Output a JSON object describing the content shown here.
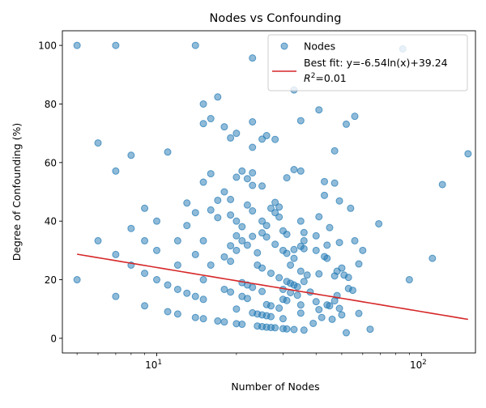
{
  "chart_data": {
    "type": "scatter",
    "title": "Nodes vs Confounding",
    "xlabel": "Number of Nodes",
    "ylabel": "Degree of Confounding (%)",
    "xscale": "log",
    "xlim": [
      4.4,
      160
    ],
    "ylim": [
      -5,
      105
    ],
    "xticks": [
      {
        "value": 10,
        "base": "10",
        "exp": "1"
      },
      {
        "value": 100,
        "base": "10",
        "exp": "2"
      }
    ],
    "yticks": [
      0,
      20,
      40,
      60,
      80,
      100
    ],
    "ytick_labels": [
      "0",
      "20",
      "40",
      "60",
      "80",
      "100"
    ],
    "legend": {
      "position": "top-right",
      "scatter_label": "Nodes",
      "fit_label": "Best fit: y=-6.54ln(x)+39.24",
      "r2_label": "R",
      "r2_sup": "2",
      "r2_value": "=0.01"
    },
    "fit": {
      "a": -6.54,
      "b": 39.24,
      "x_range": [
        5,
        150
      ]
    },
    "colors": {
      "points": "#1f77b4",
      "fit": "#d62728"
    },
    "points": [
      [
        5,
        100
      ],
      [
        5,
        20
      ],
      [
        6,
        66.7
      ],
      [
        6,
        33.3
      ],
      [
        7,
        100
      ],
      [
        7,
        57.1
      ],
      [
        7,
        28.6
      ],
      [
        7,
        14.3
      ],
      [
        8,
        62.5
      ],
      [
        8,
        37.5
      ],
      [
        8,
        25
      ],
      [
        9,
        44.4
      ],
      [
        9,
        33.3
      ],
      [
        9,
        22.2
      ],
      [
        9,
        11.1
      ],
      [
        10,
        40
      ],
      [
        10,
        30
      ],
      [
        10,
        20
      ],
      [
        11,
        63.6
      ],
      [
        11,
        18.2
      ],
      [
        11,
        9.1
      ],
      [
        12,
        33.3
      ],
      [
        12,
        25
      ],
      [
        12,
        16.7
      ],
      [
        12,
        8.3
      ],
      [
        13,
        46.2
      ],
      [
        13,
        38.5
      ],
      [
        13,
        15.4
      ],
      [
        14,
        100
      ],
      [
        14,
        42.9
      ],
      [
        14,
        28.6
      ],
      [
        14,
        14.3
      ],
      [
        14,
        7.1
      ],
      [
        15,
        80
      ],
      [
        15,
        73.3
      ],
      [
        15,
        53.3
      ],
      [
        15,
        33.3
      ],
      [
        15,
        20
      ],
      [
        15,
        13.3
      ],
      [
        15,
        6.7
      ],
      [
        16,
        75
      ],
      [
        16,
        56.2
      ],
      [
        16,
        43.8
      ],
      [
        16,
        25
      ],
      [
        17,
        82.4
      ],
      [
        17,
        47.1
      ],
      [
        17,
        41.2
      ],
      [
        17,
        5.9
      ],
      [
        18,
        72.2
      ],
      [
        18,
        50
      ],
      [
        18,
        27.8
      ],
      [
        18,
        16.7
      ],
      [
        18,
        5.6
      ],
      [
        19,
        68.4
      ],
      [
        19,
        47.4
      ],
      [
        19,
        42.1
      ],
      [
        19,
        31.6
      ],
      [
        19,
        26.3
      ],
      [
        19,
        15.8
      ],
      [
        20,
        70
      ],
      [
        20,
        55
      ],
      [
        20,
        40
      ],
      [
        20,
        35
      ],
      [
        20,
        30
      ],
      [
        20,
        10
      ],
      [
        20,
        5
      ],
      [
        21,
        57.1
      ],
      [
        21,
        38.1
      ],
      [
        21,
        33.3
      ],
      [
        21,
        19
      ],
      [
        21,
        14.3
      ],
      [
        21,
        4.8
      ],
      [
        22,
        54.5
      ],
      [
        22,
        45.5
      ],
      [
        22,
        31.8
      ],
      [
        22,
        18.2
      ],
      [
        22,
        13.6
      ],
      [
        23,
        95.7
      ],
      [
        23,
        73.9
      ],
      [
        23,
        65.2
      ],
      [
        23,
        56.5
      ],
      [
        23,
        52.2
      ],
      [
        23,
        43.5
      ],
      [
        23,
        34.8
      ],
      [
        23,
        17.4
      ],
      [
        23,
        8.7
      ],
      [
        24,
        29.2
      ],
      [
        24,
        25
      ],
      [
        24,
        8.3
      ],
      [
        24,
        4.2
      ],
      [
        25,
        68
      ],
      [
        25,
        52
      ],
      [
        25,
        40
      ],
      [
        25,
        36
      ],
      [
        25,
        24
      ],
      [
        25,
        16
      ],
      [
        25,
        8
      ],
      [
        25,
        4
      ],
      [
        26,
        69.2
      ],
      [
        26,
        38.5
      ],
      [
        26,
        34.6
      ],
      [
        26,
        11.5
      ],
      [
        26,
        7.7
      ],
      [
        26,
        3.8
      ],
      [
        27,
        44.4
      ],
      [
        27,
        22.2
      ],
      [
        27,
        11.1
      ],
      [
        27,
        7.4
      ],
      [
        27,
        3.7
      ],
      [
        28,
        67.9
      ],
      [
        28,
        46.4
      ],
      [
        28,
        42.9
      ],
      [
        28,
        32.1
      ],
      [
        28,
        3.6
      ],
      [
        29,
        44.8
      ],
      [
        29,
        41.4
      ],
      [
        29,
        20.7
      ],
      [
        29,
        10.3
      ],
      [
        30,
        36.7
      ],
      [
        30,
        30
      ],
      [
        30,
        16.7
      ],
      [
        30,
        13.3
      ],
      [
        30,
        6.7
      ],
      [
        30,
        3.3
      ],
      [
        31,
        54.8
      ],
      [
        31,
        35.5
      ],
      [
        31,
        29
      ],
      [
        31,
        19.4
      ],
      [
        31,
        12.9
      ],
      [
        31,
        3.2
      ],
      [
        32,
        25
      ],
      [
        32,
        18.8
      ],
      [
        32,
        15.6
      ],
      [
        33,
        84.8
      ],
      [
        33,
        57.6
      ],
      [
        33,
        30.3
      ],
      [
        33,
        27.3
      ],
      [
        33,
        18.2
      ],
      [
        33,
        3
      ],
      [
        34,
        17.6
      ],
      [
        34,
        14.7
      ],
      [
        35,
        74.3
      ],
      [
        35,
        57.1
      ],
      [
        35,
        40
      ],
      [
        35,
        31.4
      ],
      [
        35,
        22.9
      ],
      [
        35,
        11.4
      ],
      [
        35,
        8.6
      ],
      [
        36,
        36.1
      ],
      [
        36,
        33.3
      ],
      [
        36,
        30.6
      ],
      [
        36,
        19.4
      ],
      [
        36,
        2.8
      ],
      [
        37,
        21.6
      ],
      [
        38,
        15.8
      ],
      [
        39,
        5.1
      ],
      [
        40,
        35
      ],
      [
        40,
        30
      ],
      [
        40,
        12.5
      ],
      [
        41,
        78
      ],
      [
        41,
        41.5
      ],
      [
        41,
        22
      ],
      [
        41,
        9.8
      ],
      [
        42,
        7.1
      ],
      [
        43,
        53.5
      ],
      [
        43,
        48.8
      ],
      [
        43,
        27.9
      ],
      [
        44,
        31.8
      ],
      [
        44,
        27.3
      ],
      [
        44,
        11.4
      ],
      [
        45,
        37.8
      ],
      [
        45,
        11.1
      ],
      [
        46,
        6.5
      ],
      [
        47,
        64
      ],
      [
        47,
        53
      ],
      [
        47,
        21.3
      ],
      [
        47,
        12.8
      ],
      [
        48,
        22.9
      ],
      [
        48,
        14.6
      ],
      [
        49,
        46.9
      ],
      [
        49,
        32.7
      ],
      [
        49,
        10.2
      ],
      [
        50,
        24
      ],
      [
        50,
        8
      ],
      [
        51,
        21.6
      ],
      [
        52,
        73.1
      ],
      [
        52,
        1.9
      ],
      [
        53,
        20.8
      ],
      [
        53,
        17
      ],
      [
        54,
        44.4
      ],
      [
        55,
        16.4
      ],
      [
        56,
        75.8
      ],
      [
        56,
        33.3
      ],
      [
        58,
        25.4
      ],
      [
        58,
        8.5
      ],
      [
        60,
        30
      ],
      [
        64,
        3.1
      ],
      [
        69,
        39.1
      ],
      [
        85,
        98.8
      ],
      [
        90,
        20
      ],
      [
        110,
        27.3
      ],
      [
        120,
        52.5
      ],
      [
        150,
        63
      ]
    ]
  }
}
